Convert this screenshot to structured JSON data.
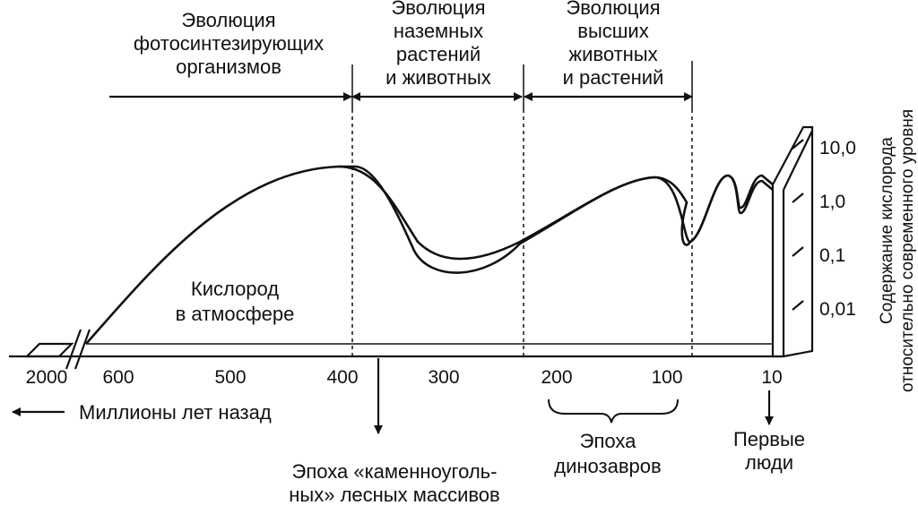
{
  "eras": [
    {
      "lines": [
        "Эволюция",
        "фотосинтезирующих",
        "организмов"
      ]
    },
    {
      "lines": [
        "Эволюция",
        "наземных",
        "растений",
        "и животных"
      ]
    },
    {
      "lines": [
        "Эволюция",
        "высших",
        "животных",
        "и растений"
      ]
    }
  ],
  "curve_label": [
    "Кислород",
    "в атмосфере"
  ],
  "x_axis": {
    "ticks": [
      "2000",
      "600",
      "500",
      "400",
      "300",
      "200",
      "100",
      "10"
    ],
    "label": "Миллионы лет назад"
  },
  "y_axis": {
    "ticks": [
      "10,0",
      "1,0",
      "0,1",
      "0,01"
    ],
    "label": [
      "Содержание кислорода",
      "относительно современного уровня"
    ]
  },
  "annotations": {
    "coal": [
      "Эпоха «каменноуголь-",
      "ных» лесных массивов"
    ],
    "dinosaurs": [
      "Эпоха",
      "динозавров"
    ],
    "humans": [
      "Первые",
      "люди"
    ]
  }
}
